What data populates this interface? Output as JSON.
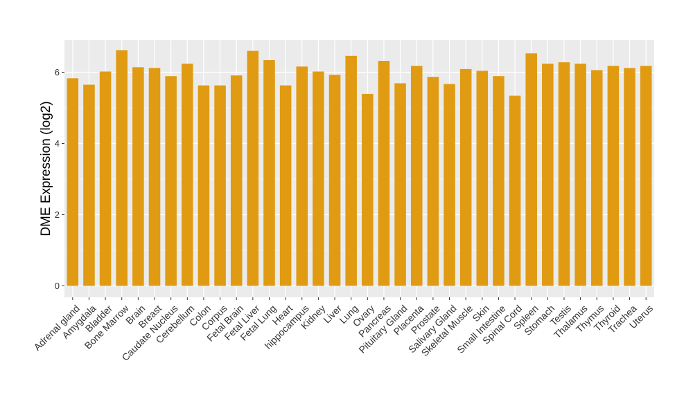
{
  "chart_data": {
    "type": "bar",
    "title": "",
    "xlabel": "",
    "ylabel": "DME Expression (log2)",
    "ylim": [
      -0.3,
      6.9
    ],
    "yticks": [
      0,
      2,
      4,
      6
    ],
    "grid": true,
    "colors": {
      "bar": "#e09b13",
      "panel": "#ebebeb",
      "grid": "#ffffff"
    },
    "categories": [
      "Adrenal gland",
      "Amygdala",
      "Bladder",
      "Bone Marrow",
      "Brain",
      "Breast",
      "Caudate Nucleus",
      "Cerebellum",
      "Colon",
      "Corpus",
      "Fetal Brain",
      "Fetal Liver",
      "Fetal Lung",
      "Heart",
      "hippocampus",
      "Kidney",
      "Liver",
      "Lung",
      "Ovary",
      "Pancreas",
      "Pituitary Gland",
      "Placenta",
      "Prostate",
      "Salivary Gland",
      "Skeletal Muscle",
      "Skin",
      "Small Intestine",
      "Spinal Cord",
      "Spleen",
      "Stomach",
      "Testis",
      "Thalamus",
      "Thymus",
      "Thyroid",
      "Trachea",
      "Uterus"
    ],
    "values": [
      5.83,
      5.65,
      6.02,
      6.62,
      6.14,
      6.12,
      5.89,
      6.24,
      5.63,
      5.63,
      5.91,
      6.6,
      6.34,
      5.63,
      6.16,
      6.02,
      5.93,
      6.46,
      5.39,
      6.32,
      5.69,
      6.18,
      5.87,
      5.67,
      6.09,
      6.04,
      5.89,
      5.34,
      6.53,
      6.24,
      6.28,
      6.24,
      6.06,
      6.18,
      6.12,
      6.18
    ]
  }
}
